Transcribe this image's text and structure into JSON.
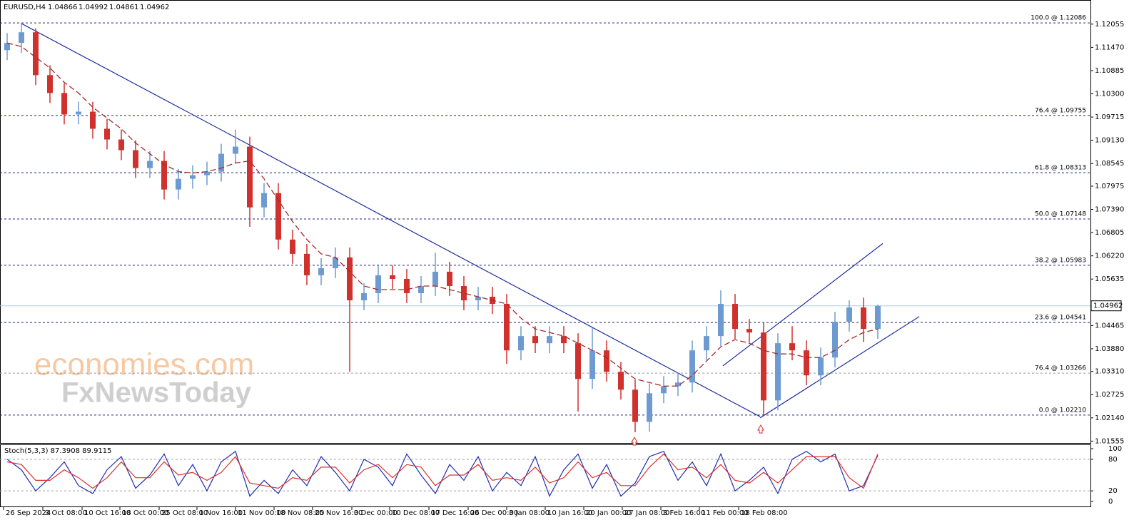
{
  "chart_data": [
    {
      "type": "candlestick",
      "title": "EURUSD,H4",
      "quote": [
        1.04866,
        1.04992,
        1.04861,
        1.04962
      ],
      "watermark": [
        "economies.com",
        "FxNewsToday"
      ],
      "up_color": "#6d9bd1",
      "down_color": "#d0312d",
      "x": [
        0,
        1,
        2,
        3,
        4,
        5,
        6,
        7,
        8,
        9,
        10,
        11,
        12,
        13,
        14,
        15,
        16,
        17,
        18,
        19,
        20,
        21,
        22,
        23,
        24,
        25,
        26,
        27,
        28,
        29,
        30,
        31,
        32,
        33,
        34,
        35,
        36,
        37,
        38,
        39,
        40,
        41,
        42,
        43,
        44,
        45,
        46,
        47,
        48,
        49,
        50,
        51,
        52,
        53,
        54,
        55,
        56,
        57,
        58,
        59,
        60,
        61
      ],
      "open": [
        1.114,
        1.1158,
        1.1185,
        1.1077,
        1.1032,
        1.0978,
        1.0985,
        1.0942,
        1.0915,
        1.0888,
        1.0843,
        1.0861,
        1.0789,
        1.0816,
        1.0825,
        1.0834,
        1.0879,
        1.0897,
        1.0744,
        1.078,
        1.0663,
        1.0627,
        1.0573,
        1.0591,
        1.0618,
        1.051,
        1.0528,
        1.0573,
        1.0564,
        1.0528,
        1.0546,
        1.0582,
        1.0546,
        1.051,
        1.0519,
        1.0501,
        1.0384,
        1.042,
        1.0402,
        1.042,
        1.0402,
        1.0312,
        1.0384,
        1.033,
        1.0285,
        1.0204,
        1.0276,
        1.0294,
        1.0303,
        1.0384,
        1.042,
        1.0501,
        1.0438,
        1.0429,
        1.0258,
        1.0402,
        1.0384,
        1.0321,
        1.0366,
        1.0456,
        1.0492,
        1.0438
      ],
      "high": [
        1.1183,
        1.1209,
        1.1195,
        1.1102,
        1.1057,
        1.101,
        1.101,
        1.0967,
        1.094,
        1.0913,
        1.0886,
        1.0886,
        1.0841,
        1.085,
        1.0859,
        1.0904,
        1.094,
        1.0922,
        1.0805,
        1.0805,
        1.0688,
        1.0652,
        1.0616,
        1.0643,
        1.0643,
        1.0553,
        1.0598,
        1.0598,
        1.0589,
        1.0571,
        1.063,
        1.0607,
        1.0571,
        1.0544,
        1.0544,
        1.0526,
        1.0445,
        1.0445,
        1.0445,
        1.0445,
        1.0427,
        1.044,
        1.0409,
        1.0355,
        1.031,
        1.0301,
        1.0319,
        1.0328,
        1.0409,
        1.0445,
        1.0535,
        1.0526,
        1.0463,
        1.0454,
        1.0427,
        1.0445,
        1.0409,
        1.0391,
        1.0481,
        1.051,
        1.0517,
        1.0499
      ],
      "low": [
        1.1115,
        1.1133,
        1.1052,
        1.1007,
        1.0953,
        1.0953,
        1.0917,
        1.089,
        1.0863,
        1.0818,
        1.0818,
        1.0764,
        1.0764,
        1.0791,
        1.08,
        1.0809,
        1.0854,
        1.0695,
        1.0719,
        1.0638,
        1.0602,
        1.0548,
        1.0548,
        1.0566,
        1.033,
        1.0485,
        1.0503,
        1.0539,
        1.0503,
        1.0503,
        1.0521,
        1.0521,
        1.0485,
        1.0485,
        1.0476,
        1.035,
        1.0359,
        1.0377,
        1.0377,
        1.0377,
        1.023,
        1.0287,
        1.0305,
        1.026,
        1.0178,
        1.0179,
        1.0251,
        1.0269,
        1.0278,
        1.0359,
        1.0395,
        1.0413,
        1.0404,
        1.0221,
        1.0233,
        1.0359,
        1.0296,
        1.0296,
        1.0341,
        1.0431,
        1.0405,
        1.0413
      ],
      "close": [
        1.1158,
        1.1185,
        1.1077,
        1.1032,
        1.0978,
        1.0985,
        1.0942,
        1.0915,
        1.0888,
        1.0843,
        1.0861,
        1.0789,
        1.0816,
        1.0825,
        1.0834,
        1.0879,
        1.0897,
        1.0744,
        1.078,
        1.0663,
        1.0627,
        1.0573,
        1.0591,
        1.0618,
        1.051,
        1.0528,
        1.0573,
        1.0564,
        1.0528,
        1.0546,
        1.0582,
        1.0546,
        1.051,
        1.0519,
        1.0501,
        1.0384,
        1.042,
        1.0402,
        1.042,
        1.0402,
        1.0312,
        1.0384,
        1.033,
        1.0285,
        1.0204,
        1.0276,
        1.0294,
        1.0303,
        1.0384,
        1.042,
        1.0501,
        1.0438,
        1.0429,
        1.0258,
        1.0402,
        1.0384,
        1.0321,
        1.0366,
        1.0456,
        1.0492,
        1.0438,
        1.0496
      ],
      "ma_values": [
        1.1158,
        1.1149,
        1.1122,
        1.1095,
        1.1059,
        1.1032,
        1.0996,
        1.0969,
        1.0942,
        1.0906,
        1.0879,
        1.0852,
        1.0834,
        1.0831,
        1.0834,
        1.0843,
        1.0856,
        1.0861,
        1.0816,
        1.0762,
        1.0708,
        1.0663,
        1.0627,
        1.0618,
        1.0582,
        1.0546,
        1.0537,
        1.0537,
        1.0537,
        1.0546,
        1.0546,
        1.0537,
        1.0528,
        1.0519,
        1.051,
        1.0501,
        1.0465,
        1.0438,
        1.0429,
        1.042,
        1.0402,
        1.0384,
        1.0366,
        1.0339,
        1.0312,
        1.0303,
        1.0294,
        1.0294,
        1.0321,
        1.0357,
        1.0393,
        1.0411,
        1.0402,
        1.0384,
        1.0375,
        1.0375,
        1.0366,
        1.0366,
        1.0384,
        1.0411,
        1.0429,
        1.0438
      ],
      "ma_color": "#a52a2a",
      "fib_levels": [
        {
          "label": "100.0 @ 1.12086",
          "value": 1.12086,
          "color": "#1a237e"
        },
        {
          "label": "76.4 @ 1.09755",
          "value": 1.09755,
          "color": "#1a237e"
        },
        {
          "label": "61.8 @ 1.08313",
          "value": 1.08313,
          "color": "#1a237e"
        },
        {
          "label": "50.0 @ 1.07148",
          "value": 1.07148,
          "color": "#1a237e"
        },
        {
          "label": "38.2 @ 1.05983",
          "value": 1.05983,
          "color": "#1a237e"
        },
        {
          "label": "23.6 @ 1.04541",
          "value": 1.04541,
          "color": "#1a237e"
        },
        {
          "label": "76.4 @ 1.03266",
          "value": 1.03266,
          "color": "#9a9a9a"
        },
        {
          "label": "0.0 @ 1.02210",
          "value": 1.0221,
          "color": "#1a237e"
        }
      ],
      "trendlines": [
        {
          "x": [
            1.0,
            52.75
          ],
          "y": [
            1.1207,
            1.0217
          ],
          "color": "#1f2f9e"
        },
        {
          "x": [
            52.75,
            63.9
          ],
          "y": [
            1.0214,
            1.0469
          ],
          "color": "#1f2f9e"
        },
        {
          "x": [
            50.15,
            61.35
          ],
          "y": [
            1.0345,
            1.0653
          ],
          "color": "#1f2f9e"
        }
      ],
      "price_line_color": "#9fd3e8",
      "xlim": [
        -0.5,
        75.9
      ],
      "ylim": [
        1.01508,
        1.12662
      ],
      "yticks": [
        1.12055,
        {
          "value": 1.1147,
          "label": "1.11470"
        },
        1.10885,
        {
          "value": 1.103,
          "label": "1.10300"
        },
        1.09715,
        {
          "value": 1.0913,
          "label": "1.09130"
        },
        1.08545,
        1.07975,
        {
          "value": 1.0739,
          "label": "1.07390"
        },
        1.06805,
        {
          "value": 1.0622,
          "label": "1.06220"
        },
        1.05635,
        1.04465,
        {
          "value": 1.0388,
          "label": "1.03880"
        },
        {
          "value": 1.0331,
          "label": "1.03310"
        },
        1.02725,
        {
          "value": 1.0214,
          "label": "1.02140"
        },
        1.01555
      ],
      "xticks": [
        {
          "value": -0.25,
          "label": "26 Sep 2024"
        },
        {
          "value": 2.5,
          "label": "3 Oct 08:00"
        },
        {
          "value": 5.25,
          "label": "10 Oct 16:00"
        },
        {
          "value": 7.9,
          "label": "18 Oct 00:00"
        },
        {
          "value": 10.65,
          "label": "25 Oct 08:00"
        },
        {
          "value": 13.3,
          "label": "1 Nov 16:00"
        },
        {
          "value": 16,
          "label": "11 Nov 00:00"
        },
        {
          "value": 18.7,
          "label": "18 Nov 08:00"
        },
        {
          "value": 21.4,
          "label": "25 Nov 16:00"
        },
        {
          "value": 24.15,
          "label": "3 Dec 00:00"
        },
        {
          "value": 26.8,
          "label": "10 Dec 08:00"
        },
        {
          "value": 29.55,
          "label": "17 Dec 16:00"
        },
        {
          "value": 32.3,
          "label": "26 Dec 00:00"
        },
        {
          "value": 35,
          "label": "3 Jan 08:00"
        },
        {
          "value": 37.7,
          "label": "10 Jan 16:00"
        },
        {
          "value": 40.4,
          "label": "20 Jan 00:00"
        },
        {
          "value": 43.1,
          "label": "27 Jan 08:00"
        },
        {
          "value": 45.8,
          "label": "3 Feb 16:00"
        },
        {
          "value": 48.5,
          "label": "11 Feb 00:00"
        },
        {
          "value": 51.25,
          "label": "18 Feb 08:00"
        }
      ]
    },
    {
      "type": "stochastic",
      "title": "Stoch(5,3,3) 87.3908 89.9115",
      "x": [
        0,
        1,
        2,
        3,
        4,
        5,
        6,
        7,
        8,
        9,
        10,
        11,
        12,
        13,
        14,
        15,
        16,
        17,
        18,
        19,
        20,
        21,
        22,
        23,
        24,
        25,
        26,
        27,
        28,
        29,
        30,
        31,
        32,
        33,
        34,
        35,
        36,
        37,
        38,
        39,
        40,
        41,
        42,
        43,
        44,
        45,
        46,
        47,
        48,
        49,
        50,
        51,
        52,
        53,
        54,
        55,
        56,
        57,
        58,
        59,
        60,
        61
      ],
      "series": [
        {
          "color": "#1f2fb0",
          "values": [
            80,
            60,
            20,
            45,
            75,
            30,
            15,
            60,
            85,
            25,
            50,
            90,
            30,
            70,
            20,
            75,
            95,
            10,
            40,
            15,
            60,
            30,
            85,
            55,
            20,
            80,
            65,
            30,
            90,
            50,
            15,
            70,
            40,
            85,
            20,
            55,
            30,
            85,
            10,
            60,
            90,
            25,
            70,
            10,
            35,
            85,
            95,
            40,
            75,
            30,
            90,
            20,
            40,
            65,
            15,
            80,
            95,
            75,
            90,
            20,
            30,
            87.3908
          ]
        },
        {
          "color": "#e0302a",
          "values": [
            75,
            70,
            40,
            40,
            60,
            45,
            25,
            45,
            75,
            45,
            45,
            75,
            50,
            55,
            40,
            55,
            85,
            35,
            30,
            25,
            45,
            40,
            65,
            65,
            35,
            60,
            70,
            45,
            70,
            65,
            30,
            50,
            50,
            70,
            40,
            45,
            40,
            65,
            35,
            45,
            75,
            45,
            55,
            30,
            30,
            65,
            90,
            60,
            65,
            45,
            70,
            40,
            35,
            55,
            35,
            60,
            85,
            85,
            85,
            45,
            25,
            89.9115
          ]
        }
      ],
      "levels": [
        20,
        80
      ],
      "level_color": "#a0a0a0",
      "xlim": [
        -0.5,
        75.9
      ],
      "ylim": [
        -9.5,
        106.8
      ],
      "yticks": [
        0,
        20,
        80,
        100
      ]
    }
  ]
}
